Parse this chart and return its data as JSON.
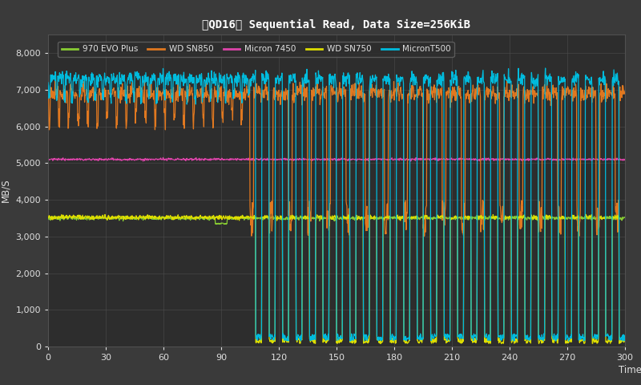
{
  "title": "【QD16】 Sequential Read, Data Size=256KiB",
  "ylabel": "MB/S",
  "xlabel": "Time(s)",
  "xlim": [
    0,
    300
  ],
  "ylim": [
    0,
    8500
  ],
  "yticks": [
    0,
    1000,
    2000,
    3000,
    4000,
    5000,
    6000,
    7000,
    8000
  ],
  "xticks": [
    0,
    30,
    60,
    90,
    120,
    150,
    180,
    210,
    240,
    270,
    300
  ],
  "bg_color": "#3a3a3a",
  "plot_bg_color": "#2d2d2d",
  "grid_color": "#505050",
  "text_color": "#e0e0e0",
  "title_color": "#ffffff",
  "series": {
    "970_evo_plus": {
      "label": "970 EVO Plus",
      "color": "#88cc33",
      "base": 3500
    },
    "wd_sn850": {
      "label": "WD SN850",
      "color": "#e07820",
      "base": 6900
    },
    "micron_7450": {
      "label": "Micron 7450",
      "color": "#dd44aa",
      "base": 5100
    },
    "wd_sn750": {
      "label": "WD SN750",
      "color": "#dddd00",
      "base": 3520
    },
    "micron_t500": {
      "label": "MicronT500",
      "color": "#00bbdd",
      "base": 7300
    }
  },
  "figsize": [
    8.0,
    4.8
  ],
  "dpi": 100
}
